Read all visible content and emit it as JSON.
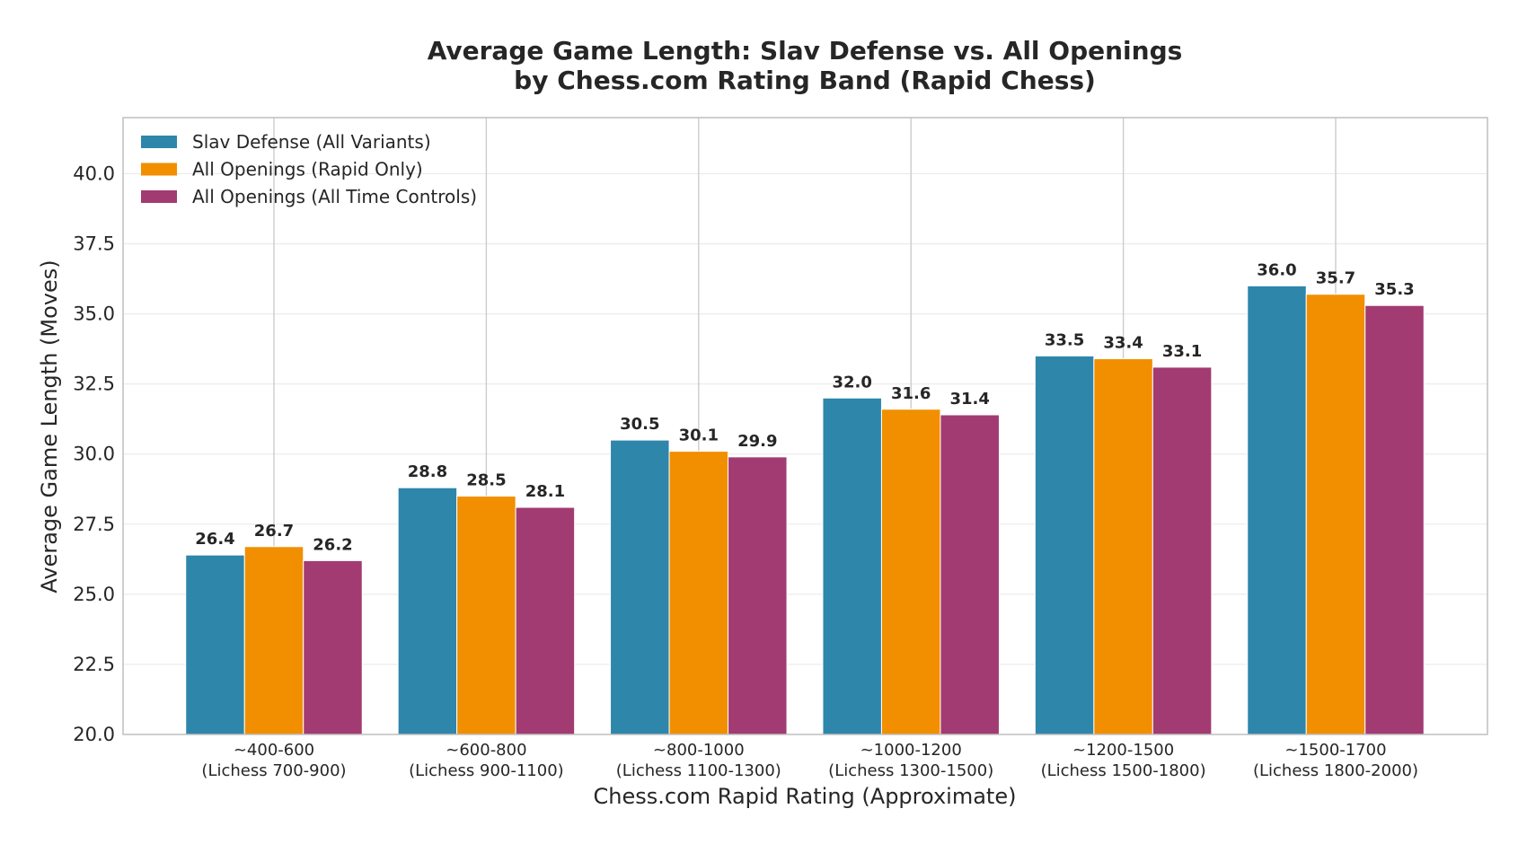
{
  "chart_data": {
    "type": "bar",
    "title": "Average Game Length: Slav Defense vs. All Openings",
    "subtitle": "by Chess.com Rating Band (Rapid Chess)",
    "xlabel": "Chess.com Rapid Rating (Approximate)",
    "ylabel": "Average Game Length (Moves)",
    "ylim": [
      20,
      42
    ],
    "yticks": [
      "20.0",
      "22.5",
      "25.0",
      "27.5",
      "30.0",
      "32.5",
      "35.0",
      "37.5",
      "40.0"
    ],
    "grid": true,
    "legend_position": "top-left",
    "categories": [
      [
        "~400-600",
        "(Lichess 700-900)"
      ],
      [
        "~600-800",
        "(Lichess 900-1100)"
      ],
      [
        "~800-1000",
        "(Lichess 1100-1300)"
      ],
      [
        "~1000-1200",
        "(Lichess 1300-1500)"
      ],
      [
        "~1200-1500",
        "(Lichess 1500-1800)"
      ],
      [
        "~1500-1700",
        "(Lichess 1800-2000)"
      ]
    ],
    "series": [
      {
        "name": "Slav Defense (All Variants)",
        "color": "#2e86ab",
        "values": [
          26.4,
          28.8,
          30.5,
          32.0,
          33.5,
          36.0
        ]
      },
      {
        "name": "All Openings (Rapid Only)",
        "color": "#f18f01",
        "values": [
          26.7,
          28.5,
          30.1,
          31.6,
          33.4,
          35.7
        ]
      },
      {
        "name": "All Openings (All Time Controls)",
        "color": "#a23b72",
        "values": [
          26.2,
          28.1,
          29.9,
          31.4,
          33.1,
          35.3
        ]
      }
    ]
  }
}
